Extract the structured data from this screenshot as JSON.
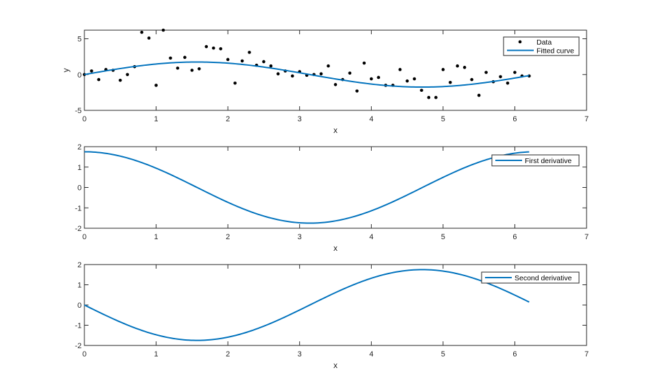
{
  "colors": {
    "data_marker": "#000000",
    "curve": "#0072BD",
    "axes": "#262626",
    "background": "#ffffff"
  },
  "chart_data": [
    {
      "type": "scatter",
      "title": "",
      "xlabel": "x",
      "ylabel": "y",
      "xlim": [
        0,
        7
      ],
      "ylim": [
        -5,
        6.2
      ],
      "xticks": [
        "0",
        "1",
        "2",
        "3",
        "4",
        "5",
        "6",
        "7"
      ],
      "yticks": [
        "-5",
        "0",
        "5"
      ],
      "grid": false,
      "legend_position": "top-right",
      "series": [
        {
          "name": "Data",
          "type": "scatter",
          "x": [
            0,
            0.1,
            0.2,
            0.3,
            0.4,
            0.5,
            0.6,
            0.7,
            0.8,
            0.9,
            1.0,
            1.1,
            1.2,
            1.3,
            1.4,
            1.5,
            1.6,
            1.7,
            1.8,
            1.9,
            2.0,
            2.1,
            2.2,
            2.3,
            2.4,
            2.5,
            2.6,
            2.7,
            2.8,
            2.9,
            3.0,
            3.1,
            3.2,
            3.3,
            3.4,
            3.5,
            3.6,
            3.7,
            3.8,
            3.9,
            4.0,
            4.1,
            4.2,
            4.3,
            4.4,
            4.5,
            4.6,
            4.7,
            4.8,
            4.9,
            5.0,
            5.1,
            5.2,
            5.3,
            5.4,
            5.5,
            5.6,
            5.7,
            5.8,
            5.9,
            6.0,
            6.1,
            6.2
          ],
          "y": [
            0.0,
            0.5,
            -0.7,
            0.7,
            0.6,
            -0.8,
            0.0,
            1.1,
            5.9,
            5.1,
            -1.5,
            6.2,
            2.3,
            0.9,
            2.4,
            0.6,
            0.8,
            3.9,
            3.7,
            3.6,
            2.1,
            -1.2,
            1.9,
            3.1,
            1.3,
            1.8,
            1.2,
            0.1,
            0.5,
            -0.2,
            0.4,
            -0.1,
            0.0,
            0.1,
            1.2,
            -1.4,
            -0.7,
            0.2,
            -2.3,
            1.6,
            -0.6,
            -0.4,
            -1.5,
            -1.5,
            0.7,
            -0.9,
            -0.6,
            -2.2,
            -3.2,
            -3.2,
            0.7,
            -1.1,
            1.2,
            1.0,
            -0.7,
            -2.9,
            0.3,
            -1.0,
            -0.3,
            -1.2,
            0.3,
            -0.2,
            -0.2
          ]
        },
        {
          "name": "Fitted curve",
          "type": "line",
          "function": "1.75*sin(x)",
          "x_range": [
            0,
            6.2
          ]
        }
      ]
    },
    {
      "type": "line",
      "title": "",
      "xlabel": "x",
      "ylabel": "",
      "xlim": [
        0,
        7
      ],
      "ylim": [
        -2,
        2
      ],
      "xticks": [
        "0",
        "1",
        "2",
        "3",
        "4",
        "5",
        "6",
        "7"
      ],
      "yticks": [
        "-2",
        "-1",
        "0",
        "1",
        "2"
      ],
      "grid": false,
      "legend_position": "top-right",
      "series": [
        {
          "name": "First derivative",
          "function": "1.75*cos(x)",
          "x_range": [
            0,
            6.2
          ]
        }
      ]
    },
    {
      "type": "line",
      "title": "",
      "xlabel": "x",
      "ylabel": "",
      "xlim": [
        0,
        7
      ],
      "ylim": [
        -2,
        2
      ],
      "xticks": [
        "0",
        "1",
        "2",
        "3",
        "4",
        "5",
        "6",
        "7"
      ],
      "yticks": [
        "-2",
        "-1",
        "0",
        "1",
        "2"
      ],
      "grid": false,
      "legend_position": "top-right",
      "series": [
        {
          "name": "Second derivative",
          "function": "-1.75*sin(x)",
          "x_range": [
            0,
            6.2
          ]
        }
      ]
    }
  ]
}
